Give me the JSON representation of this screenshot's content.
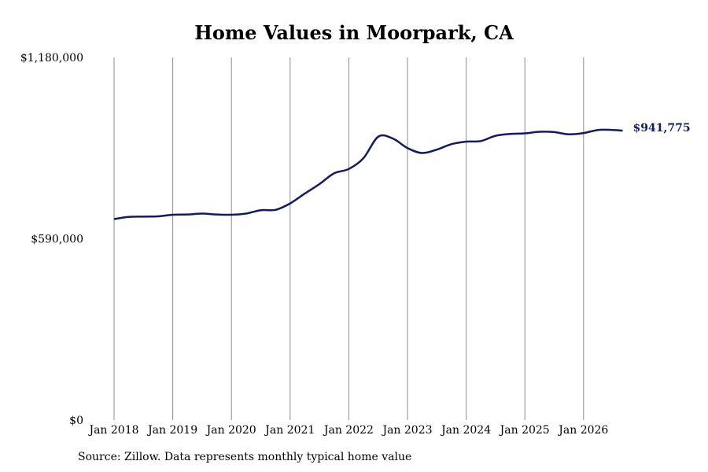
{
  "chart_data": {
    "type": "line",
    "title": "Home Values in Moorpark, CA",
    "source": "Source: Zillow. Data represents monthly typical home value",
    "xlabel": "",
    "ylabel": "",
    "ylim": [
      0,
      1180000
    ],
    "x_ticks": [
      "Jan 2018",
      "Jan 2019",
      "Jan 2020",
      "Jan 2021",
      "Jan 2022",
      "Jan 2023",
      "Jan 2024",
      "Jan 2025",
      "Jan 2026"
    ],
    "y_ticks": [
      {
        "value": 0,
        "label": "$0"
      },
      {
        "value": 590000,
        "label": "$590,000"
      },
      {
        "value": 1180000,
        "label": "$1,180,000"
      }
    ],
    "grid": "vertical",
    "end_label": "$941,775",
    "line_color": "#141a5c",
    "series": [
      {
        "x": [
          "2018-01",
          "2018-04",
          "2018-07",
          "2018-10",
          "2019-01",
          "2019-04",
          "2019-07",
          "2019-10",
          "2020-01",
          "2020-04",
          "2020-07",
          "2020-10",
          "2021-01",
          "2021-04",
          "2021-07",
          "2021-10",
          "2022-01",
          "2022-04",
          "2022-07",
          "2022-10",
          "2023-01",
          "2023-04",
          "2023-07",
          "2023-10",
          "2024-01",
          "2024-04",
          "2024-07",
          "2024-10",
          "2025-01",
          "2025-04",
          "2025-07",
          "2025-10",
          "2026-01",
          "2026-04",
          "2026-07",
          "2026-09"
        ],
        "y": [
          654000,
          661000,
          662000,
          663000,
          668000,
          669000,
          672000,
          669000,
          668000,
          672000,
          683000,
          684000,
          705000,
          737000,
          768000,
          803000,
          817000,
          852000,
          922000,
          916000,
          885000,
          869000,
          880000,
          898000,
          906000,
          908000,
          925000,
          931000,
          933000,
          938000,
          937000,
          930000,
          934000,
          944000,
          944000,
          941775
        ]
      }
    ]
  }
}
